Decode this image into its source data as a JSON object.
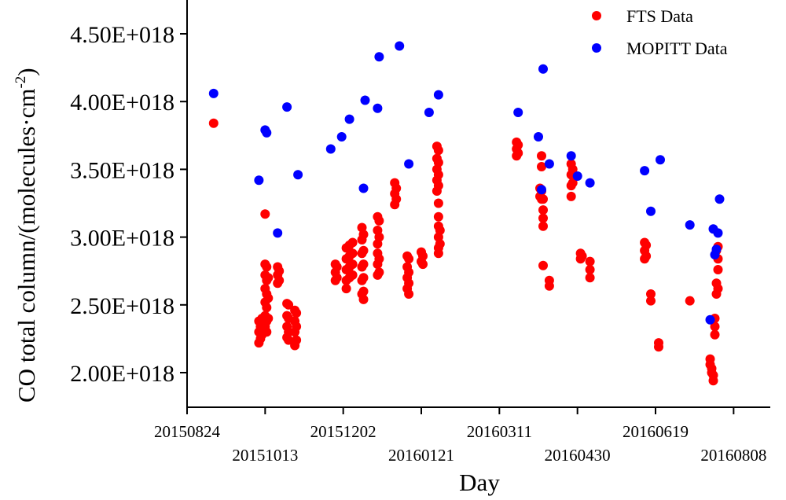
{
  "chart_data": {
    "type": "scatter",
    "ylabel": "CO total column/(molecules·cm",
    "ylabel_sup": "-2",
    "ylabel_close": ")",
    "xlabel": "Day",
    "ylim": [
      1.85e+18,
      4.75e+18
    ],
    "xlim": [
      "2015-08-24",
      "2016-08-31"
    ],
    "grid": false,
    "legend_position": "top-right",
    "y_ticks": [
      {
        "value": 2e+18,
        "label": "2.00E+018"
      },
      {
        "value": 2.5e+18,
        "label": "2.50E+018"
      },
      {
        "value": 3e+18,
        "label": "3.00E+018"
      },
      {
        "value": 3.5e+18,
        "label": "3.50E+018"
      },
      {
        "value": 4e+18,
        "label": "4.00E+018"
      },
      {
        "value": 4.5e+18,
        "label": "4.50E+018"
      }
    ],
    "x_ticks": [
      {
        "value": "2015-08-24",
        "label": "20150824",
        "row": 1
      },
      {
        "value": "2015-10-13",
        "label": "20151013",
        "row": 2
      },
      {
        "value": "2015-12-02",
        "label": "20151202",
        "row": 1
      },
      {
        "value": "2016-01-21",
        "label": "20160121",
        "row": 2
      },
      {
        "value": "2016-03-11",
        "label": "20160311",
        "row": 1
      },
      {
        "value": "2016-04-30",
        "label": "20160430",
        "row": 2
      },
      {
        "value": "2016-06-19",
        "label": "20160619",
        "row": 1
      },
      {
        "value": "2016-08-08",
        "label": "20160808",
        "row": 2
      }
    ],
    "series": [
      {
        "name": "FTS Data",
        "color": "#ff0000",
        "points": [
          {
            "x": "2015-09-10",
            "y": 3.84e+18
          },
          {
            "x": "2015-10-09",
            "y": 2.22e+18
          },
          {
            "x": "2015-10-09",
            "y": 2.3e+18
          },
          {
            "x": "2015-10-09",
            "y": 2.38e+18
          },
          {
            "x": "2015-10-10",
            "y": 2.25e+18
          },
          {
            "x": "2015-10-10",
            "y": 2.34e+18
          },
          {
            "x": "2015-10-11",
            "y": 2.28e+18
          },
          {
            "x": "2015-10-11",
            "y": 2.4e+18
          },
          {
            "x": "2015-10-13",
            "y": 3.17e+18
          },
          {
            "x": "2015-10-13",
            "y": 2.8e+18
          },
          {
            "x": "2015-10-13",
            "y": 2.72e+18
          },
          {
            "x": "2015-10-13",
            "y": 2.62e+18
          },
          {
            "x": "2015-10-13",
            "y": 2.52e+18
          },
          {
            "x": "2015-10-13",
            "y": 2.42e+18
          },
          {
            "x": "2015-10-13",
            "y": 2.34e+18
          },
          {
            "x": "2015-10-14",
            "y": 2.78e+18
          },
          {
            "x": "2015-10-14",
            "y": 2.68e+18
          },
          {
            "x": "2015-10-14",
            "y": 2.58e+18
          },
          {
            "x": "2015-10-14",
            "y": 2.48e+18
          },
          {
            "x": "2015-10-14",
            "y": 2.38e+18
          },
          {
            "x": "2015-10-14",
            "y": 2.3e+18
          },
          {
            "x": "2015-10-15",
            "y": 2.7e+18
          },
          {
            "x": "2015-10-15",
            "y": 2.55e+18
          },
          {
            "x": "2015-10-15",
            "y": 2.4e+18
          },
          {
            "x": "2015-10-21",
            "y": 2.78e+18
          },
          {
            "x": "2015-10-21",
            "y": 2.72e+18
          },
          {
            "x": "2015-10-21",
            "y": 2.66e+18
          },
          {
            "x": "2015-10-22",
            "y": 2.75e+18
          },
          {
            "x": "2015-10-22",
            "y": 2.68e+18
          },
          {
            "x": "2015-10-27",
            "y": 2.51e+18
          },
          {
            "x": "2015-10-27",
            "y": 2.42e+18
          },
          {
            "x": "2015-10-27",
            "y": 2.34e+18
          },
          {
            "x": "2015-10-27",
            "y": 2.26e+18
          },
          {
            "x": "2015-10-28",
            "y": 2.5e+18
          },
          {
            "x": "2015-10-28",
            "y": 2.4e+18
          },
          {
            "x": "2015-10-28",
            "y": 2.3e+18
          },
          {
            "x": "2015-10-28",
            "y": 2.24e+18
          },
          {
            "x": "2015-11-01",
            "y": 2.46e+18
          },
          {
            "x": "2015-11-01",
            "y": 2.38e+18
          },
          {
            "x": "2015-11-01",
            "y": 2.3e+18
          },
          {
            "x": "2015-11-01",
            "y": 2.2e+18
          },
          {
            "x": "2015-11-02",
            "y": 2.44e+18
          },
          {
            "x": "2015-11-02",
            "y": 2.34e+18
          },
          {
            "x": "2015-11-02",
            "y": 2.24e+18
          },
          {
            "x": "2015-11-27",
            "y": 2.8e+18
          },
          {
            "x": "2015-11-27",
            "y": 2.74e+18
          },
          {
            "x": "2015-11-27",
            "y": 2.68e+18
          },
          {
            "x": "2015-11-28",
            "y": 2.78e+18
          },
          {
            "x": "2015-11-28",
            "y": 2.7e+18
          },
          {
            "x": "2015-12-04",
            "y": 2.92e+18
          },
          {
            "x": "2015-12-04",
            "y": 2.84e+18
          },
          {
            "x": "2015-12-04",
            "y": 2.76e+18
          },
          {
            "x": "2015-12-04",
            "y": 2.68e+18
          },
          {
            "x": "2015-12-04",
            "y": 2.62e+18
          },
          {
            "x": "2015-12-06",
            "y": 2.94e+18
          },
          {
            "x": "2015-12-06",
            "y": 2.86e+18
          },
          {
            "x": "2015-12-06",
            "y": 2.78e+18
          },
          {
            "x": "2015-12-06",
            "y": 2.7e+18
          },
          {
            "x": "2015-12-08",
            "y": 2.96e+18
          },
          {
            "x": "2015-12-08",
            "y": 2.88e+18
          },
          {
            "x": "2015-12-08",
            "y": 2.8e+18
          },
          {
            "x": "2015-12-08",
            "y": 2.72e+18
          },
          {
            "x": "2015-12-14",
            "y": 3.07e+18
          },
          {
            "x": "2015-12-14",
            "y": 2.98e+18
          },
          {
            "x": "2015-12-14",
            "y": 2.88e+18
          },
          {
            "x": "2015-12-14",
            "y": 2.78e+18
          },
          {
            "x": "2015-12-14",
            "y": 2.68e+18
          },
          {
            "x": "2015-12-14",
            "y": 2.58e+18
          },
          {
            "x": "2015-12-15",
            "y": 3.02e+18
          },
          {
            "x": "2015-12-15",
            "y": 2.9e+18
          },
          {
            "x": "2015-12-15",
            "y": 2.8e+18
          },
          {
            "x": "2015-12-15",
            "y": 2.7e+18
          },
          {
            "x": "2015-12-15",
            "y": 2.6e+18
          },
          {
            "x": "2015-12-15",
            "y": 2.54e+18
          },
          {
            "x": "2015-12-24",
            "y": 3.15e+18
          },
          {
            "x": "2015-12-24",
            "y": 3.05e+18
          },
          {
            "x": "2015-12-24",
            "y": 2.95e+18
          },
          {
            "x": "2015-12-24",
            "y": 2.88e+18
          },
          {
            "x": "2015-12-24",
            "y": 2.8e+18
          },
          {
            "x": "2015-12-24",
            "y": 2.72e+18
          },
          {
            "x": "2015-12-25",
            "y": 3.12e+18
          },
          {
            "x": "2015-12-25",
            "y": 3e+18
          },
          {
            "x": "2015-12-25",
            "y": 2.84e+18
          },
          {
            "x": "2015-12-25",
            "y": 2.74e+18
          },
          {
            "x": "2016-01-04",
            "y": 3.4e+18
          },
          {
            "x": "2016-01-04",
            "y": 3.32e+18
          },
          {
            "x": "2016-01-04",
            "y": 3.24e+18
          },
          {
            "x": "2016-01-05",
            "y": 3.36e+18
          },
          {
            "x": "2016-01-05",
            "y": 3.28e+18
          },
          {
            "x": "2016-01-12",
            "y": 2.86e+18
          },
          {
            "x": "2016-01-12",
            "y": 2.78e+18
          },
          {
            "x": "2016-01-12",
            "y": 2.7e+18
          },
          {
            "x": "2016-01-12",
            "y": 2.62e+18
          },
          {
            "x": "2016-01-13",
            "y": 2.84e+18
          },
          {
            "x": "2016-01-13",
            "y": 2.74e+18
          },
          {
            "x": "2016-01-13",
            "y": 2.66e+18
          },
          {
            "x": "2016-01-13",
            "y": 2.58e+18
          },
          {
            "x": "2016-01-21",
            "y": 2.89e+18
          },
          {
            "x": "2016-01-21",
            "y": 2.82e+18
          },
          {
            "x": "2016-01-22",
            "y": 2.86e+18
          },
          {
            "x": "2016-01-22",
            "y": 2.8e+18
          },
          {
            "x": "2016-01-31",
            "y": 3.67e+18
          },
          {
            "x": "2016-01-31",
            "y": 3.58e+18
          },
          {
            "x": "2016-01-31",
            "y": 3.5e+18
          },
          {
            "x": "2016-01-31",
            "y": 3.42e+18
          },
          {
            "x": "2016-01-31",
            "y": 3.34e+18
          },
          {
            "x": "2016-02-01",
            "y": 3.64e+18
          },
          {
            "x": "2016-02-01",
            "y": 3.55e+18
          },
          {
            "x": "2016-02-01",
            "y": 3.46e+18
          },
          {
            "x": "2016-02-01",
            "y": 3.38e+18
          },
          {
            "x": "2016-02-01",
            "y": 3.25e+18
          },
          {
            "x": "2016-02-01",
            "y": 3.15e+18
          },
          {
            "x": "2016-02-01",
            "y": 3.08e+18
          },
          {
            "x": "2016-02-01",
            "y": 3e+18
          },
          {
            "x": "2016-02-01",
            "y": 2.92e+18
          },
          {
            "x": "2016-02-01",
            "y": 2.88e+18
          },
          {
            "x": "2016-02-02",
            "y": 3.05e+18
          },
          {
            "x": "2016-02-02",
            "y": 2.95e+18
          },
          {
            "x": "2016-03-22",
            "y": 3.7e+18
          },
          {
            "x": "2016-03-22",
            "y": 3.65e+18
          },
          {
            "x": "2016-03-22",
            "y": 3.6e+18
          },
          {
            "x": "2016-03-23",
            "y": 3.68e+18
          },
          {
            "x": "2016-03-23",
            "y": 3.62e+18
          },
          {
            "x": "2016-04-06",
            "y": 3.36e+18
          },
          {
            "x": "2016-04-06",
            "y": 3.3e+18
          },
          {
            "x": "2016-04-07",
            "y": 3.6e+18
          },
          {
            "x": "2016-04-07",
            "y": 3.52e+18
          },
          {
            "x": "2016-04-07",
            "y": 3.34e+18
          },
          {
            "x": "2016-04-07",
            "y": 3.28e+18
          },
          {
            "x": "2016-04-08",
            "y": 3.28e+18
          },
          {
            "x": "2016-04-08",
            "y": 3.2e+18
          },
          {
            "x": "2016-04-08",
            "y": 3.14e+18
          },
          {
            "x": "2016-04-08",
            "y": 3.08e+18
          },
          {
            "x": "2016-04-08",
            "y": 2.79e+18
          },
          {
            "x": "2016-04-12",
            "y": 2.68e+18
          },
          {
            "x": "2016-04-12",
            "y": 2.64e+18
          },
          {
            "x": "2016-04-26",
            "y": 3.54e+18
          },
          {
            "x": "2016-04-26",
            "y": 3.46e+18
          },
          {
            "x": "2016-04-26",
            "y": 3.38e+18
          },
          {
            "x": "2016-04-26",
            "y": 3.3e+18
          },
          {
            "x": "2016-04-27",
            "y": 3.5e+18
          },
          {
            "x": "2016-04-27",
            "y": 3.4e+18
          },
          {
            "x": "2016-05-02",
            "y": 2.88e+18
          },
          {
            "x": "2016-05-02",
            "y": 2.84e+18
          },
          {
            "x": "2016-05-03",
            "y": 2.86e+18
          },
          {
            "x": "2016-05-08",
            "y": 2.82e+18
          },
          {
            "x": "2016-05-08",
            "y": 2.76e+18
          },
          {
            "x": "2016-05-08",
            "y": 2.7e+18
          },
          {
            "x": "2016-06-12",
            "y": 2.96e+18
          },
          {
            "x": "2016-06-12",
            "y": 2.9e+18
          },
          {
            "x": "2016-06-12",
            "y": 2.84e+18
          },
          {
            "x": "2016-06-13",
            "y": 2.94e+18
          },
          {
            "x": "2016-06-13",
            "y": 2.86e+18
          },
          {
            "x": "2016-06-16",
            "y": 2.58e+18
          },
          {
            "x": "2016-06-16",
            "y": 2.53e+18
          },
          {
            "x": "2016-06-21",
            "y": 2.22e+18
          },
          {
            "x": "2016-06-21",
            "y": 2.19e+18
          },
          {
            "x": "2016-07-11",
            "y": 2.53e+18
          },
          {
            "x": "2016-07-24",
            "y": 2.1e+18
          },
          {
            "x": "2016-07-24",
            "y": 2.06e+18
          },
          {
            "x": "2016-07-25",
            "y": 2.03e+18
          },
          {
            "x": "2016-07-25",
            "y": 2e+18
          },
          {
            "x": "2016-07-26",
            "y": 1.98e+18
          },
          {
            "x": "2016-07-26",
            "y": 1.94e+18
          },
          {
            "x": "2016-07-27",
            "y": 2.4e+18
          },
          {
            "x": "2016-07-27",
            "y": 2.34e+18
          },
          {
            "x": "2016-07-27",
            "y": 2.28e+18
          },
          {
            "x": "2016-07-28",
            "y": 2.9e+18
          },
          {
            "x": "2016-07-28",
            "y": 2.66e+18
          },
          {
            "x": "2016-07-28",
            "y": 2.58e+18
          },
          {
            "x": "2016-07-29",
            "y": 2.93e+18
          },
          {
            "x": "2016-07-29",
            "y": 2.84e+18
          },
          {
            "x": "2016-07-29",
            "y": 2.76e+18
          },
          {
            "x": "2016-07-29",
            "y": 2.62e+18
          }
        ]
      },
      {
        "name": "MOPITT Data",
        "color": "#0000ff",
        "points": [
          {
            "x": "2015-09-10",
            "y": 4.06e+18
          },
          {
            "x": "2015-10-09",
            "y": 3.42e+18
          },
          {
            "x": "2015-10-13",
            "y": 3.79e+18
          },
          {
            "x": "2015-10-14",
            "y": 3.77e+18
          },
          {
            "x": "2015-10-21",
            "y": 3.03e+18
          },
          {
            "x": "2015-10-27",
            "y": 3.96e+18
          },
          {
            "x": "2015-11-03",
            "y": 3.46e+18
          },
          {
            "x": "2015-11-24",
            "y": 3.65e+18
          },
          {
            "x": "2015-12-01",
            "y": 3.74e+18
          },
          {
            "x": "2015-12-06",
            "y": 3.87e+18
          },
          {
            "x": "2015-12-15",
            "y": 3.36e+18
          },
          {
            "x": "2015-12-16",
            "y": 4.01e+18
          },
          {
            "x": "2015-12-24",
            "y": 3.95e+18
          },
          {
            "x": "2015-12-25",
            "y": 4.33e+18
          },
          {
            "x": "2016-01-07",
            "y": 4.41e+18
          },
          {
            "x": "2016-01-13",
            "y": 3.54e+18
          },
          {
            "x": "2016-01-26",
            "y": 3.92e+18
          },
          {
            "x": "2016-02-01",
            "y": 4.05e+18
          },
          {
            "x": "2016-03-23",
            "y": 3.92e+18
          },
          {
            "x": "2016-04-05",
            "y": 3.74e+18
          },
          {
            "x": "2016-04-07",
            "y": 3.35e+18
          },
          {
            "x": "2016-04-08",
            "y": 4.24e+18
          },
          {
            "x": "2016-04-12",
            "y": 3.54e+18
          },
          {
            "x": "2016-04-26",
            "y": 3.6e+18
          },
          {
            "x": "2016-04-30",
            "y": 3.45e+18
          },
          {
            "x": "2016-05-08",
            "y": 3.4e+18
          },
          {
            "x": "2016-06-12",
            "y": 3.49e+18
          },
          {
            "x": "2016-06-16",
            "y": 3.19e+18
          },
          {
            "x": "2016-06-22",
            "y": 3.57e+18
          },
          {
            "x": "2016-07-11",
            "y": 3.09e+18
          },
          {
            "x": "2016-07-24",
            "y": 2.39e+18
          },
          {
            "x": "2016-07-26",
            "y": 3.06e+18
          },
          {
            "x": "2016-07-27",
            "y": 2.87e+18
          },
          {
            "x": "2016-07-28",
            "y": 2.91e+18
          },
          {
            "x": "2016-07-29",
            "y": 3.03e+18
          },
          {
            "x": "2016-07-30",
            "y": 3.28e+18
          }
        ]
      }
    ]
  }
}
